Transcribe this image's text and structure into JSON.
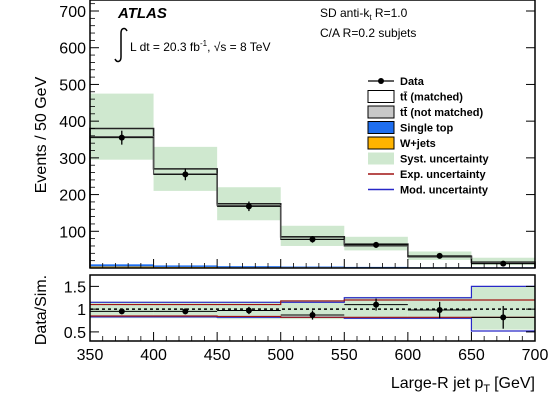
{
  "chart_data": {
    "type": "bar",
    "x_bin_edges": [
      350,
      400,
      450,
      500,
      550,
      600,
      650,
      700
    ],
    "xlabel": "Large-R jet p",
    "xlabel_sub": "T",
    "xlabel_unit": "[GeV]",
    "xlim": [
      350,
      700
    ],
    "x_ticks": [
      350,
      400,
      450,
      500,
      550,
      600,
      650,
      700
    ],
    "top_panel": {
      "ylabel": "Events / 50 GeV",
      "ylim": [
        0,
        730
      ],
      "y_ticks": [
        100,
        200,
        300,
        400,
        500,
        600,
        700
      ],
      "data": {
        "name": "Data",
        "x": [
          375,
          425,
          475,
          525,
          575,
          625,
          675
        ],
        "y": [
          355,
          255,
          168,
          78,
          63,
          33,
          12
        ],
        "yerr": [
          19,
          16,
          13,
          9,
          8,
          6,
          4
        ]
      },
      "series": [
        {
          "name": "tt̄ (matched)",
          "values": [
            380,
            270,
            175,
            85,
            65,
            32,
            16
          ]
        },
        {
          "name": "tt̄ (not matched)",
          "values": [
            358,
            256,
            170,
            78,
            60,
            30,
            14
          ]
        },
        {
          "name": "Single top",
          "values": [
            6,
            4,
            3,
            2,
            2,
            1,
            1
          ]
        },
        {
          "name": "W+jets",
          "values": [
            4,
            3,
            2,
            2,
            1,
            1,
            1
          ]
        }
      ],
      "syst_band": {
        "name": "Syst. uncertainty",
        "low": [
          295,
          210,
          130,
          60,
          48,
          22,
          8
        ],
        "high": [
          475,
          330,
          220,
          115,
          85,
          45,
          28
        ]
      }
    },
    "ratio_panel": {
      "ylabel": "Data/Sim.",
      "ylim": [
        0.3,
        1.75
      ],
      "y_ticks": [
        0.5,
        1,
        1.5
      ],
      "reference_line": 1.0,
      "values": [
        0.95,
        0.95,
        0.97,
        0.87,
        1.1,
        0.98,
        0.82
      ],
      "yerr": [
        0.06,
        0.06,
        0.08,
        0.1,
        0.13,
        0.18,
        0.25
      ],
      "syst_band": {
        "low": [
          0.8,
          0.8,
          0.78,
          0.78,
          0.78,
          0.78,
          0.55
        ],
        "high": [
          1.17,
          1.17,
          1.17,
          1.2,
          1.27,
          1.27,
          1.5
        ]
      },
      "exp_unc": {
        "name": "Exp. uncertainty",
        "low": [
          0.85,
          0.85,
          0.84,
          0.82,
          0.82,
          0.82,
          0.82
        ],
        "high": [
          1.1,
          1.1,
          1.1,
          1.18,
          1.2,
          1.2,
          1.2
        ]
      },
      "mod_unc": {
        "name": "Mod. uncertainty",
        "low": [
          0.83,
          0.83,
          0.82,
          0.82,
          0.8,
          0.8,
          0.52
        ],
        "high": [
          1.15,
          1.15,
          1.15,
          1.15,
          1.25,
          1.25,
          1.5
        ]
      }
    },
    "annotations": {
      "atlas": "ATLAS",
      "lumi_prefix": "L dt = 20.3 fb",
      "lumi_exp": "-1",
      "energy": ", √s = 8 TeV",
      "jet_alg_prefix": "SD anti-k",
      "jet_alg_sub": "t",
      "jet_alg_suffix": " R=1.0",
      "subjets": "C/A R=0.2 subjets"
    },
    "legend": {
      "placement": "top-right",
      "entries": [
        {
          "label": "Data",
          "style": "marker"
        },
        {
          "label": "tt̄ (matched)",
          "style": "box",
          "color": "#ffffff"
        },
        {
          "label": "tt̄ (not matched)",
          "style": "box",
          "color": "#c8c8c8"
        },
        {
          "label": "Single top",
          "style": "box",
          "color": "#1e6ef0"
        },
        {
          "label": "W+jets",
          "style": "box",
          "color": "#ffb400"
        },
        {
          "label": "Syst. uncertainty",
          "style": "box",
          "color": "#cfe8cf"
        },
        {
          "label": "Exp. uncertainty",
          "style": "line",
          "color": "#a01414"
        },
        {
          "label": "Mod. uncertainty",
          "style": "line",
          "color": "#2828c8"
        }
      ]
    },
    "colors": {
      "syst_band": "#cfe8cf",
      "not_matched": "#c8c8c8",
      "single_top": "#1e6ef0",
      "wjets": "#ffb400",
      "exp_line": "#a01414",
      "mod_line": "#2828c8",
      "mc_line": "#555555"
    }
  }
}
